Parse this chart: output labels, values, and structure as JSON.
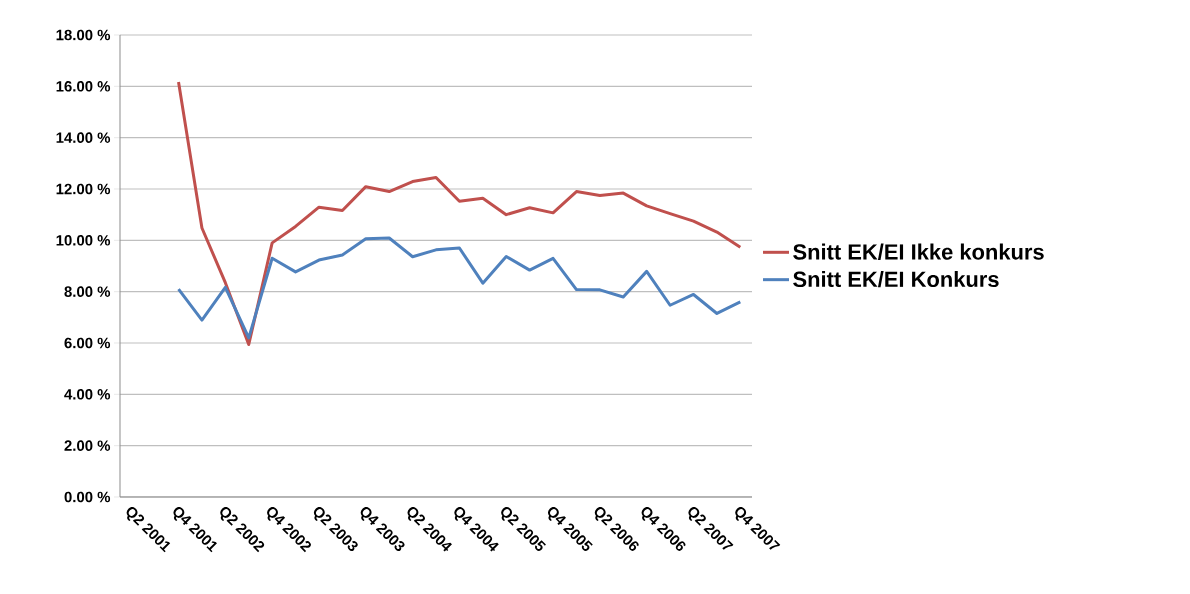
{
  "chart_data": {
    "type": "line",
    "categories": [
      "Q2 2001",
      null,
      "Q4 2001",
      null,
      "Q2 2002",
      null,
      "Q4 2002",
      null,
      "Q2 2003",
      null,
      "Q4 2003",
      null,
      "Q2 2004",
      null,
      "Q4 2004",
      null,
      "Q2 2005",
      null,
      "Q4 2005",
      null,
      "Q2 2006",
      null,
      "Q4 2006",
      null,
      "Q2 2007",
      null,
      "Q4 2007"
    ],
    "series": [
      {
        "name": "Snitt EK/EI Ikke konkurs",
        "color": "#c0504d",
        "values": [
          null,
          null,
          16.17,
          10.48,
          8.35,
          5.94,
          9.9,
          10.54,
          11.29,
          11.16,
          12.09,
          11.9,
          12.29,
          12.45,
          11.52,
          11.64,
          11.0,
          11.27,
          11.07,
          11.9,
          11.75,
          11.84,
          11.34,
          11.04,
          10.75,
          10.32,
          9.73
        ]
      },
      {
        "name": "Snitt EK/EI Konkurs",
        "color": "#4f81bd",
        "values": [
          null,
          null,
          8.1,
          6.89,
          8.17,
          6.2,
          9.3,
          8.77,
          9.23,
          9.43,
          10.06,
          10.09,
          9.36,
          9.63,
          9.7,
          8.33,
          9.37,
          8.84,
          9.3,
          8.08,
          8.07,
          7.79,
          8.79,
          7.47,
          7.89,
          7.15,
          7.6
        ]
      }
    ],
    "ylim": [
      0,
      18
    ],
    "yticks": [
      {
        "value": 0,
        "label": "0.00 %"
      },
      {
        "value": 2,
        "label": "2.00 %"
      },
      {
        "value": 4,
        "label": "4.00 %"
      },
      {
        "value": 6,
        "label": "6.00 %"
      },
      {
        "value": 8,
        "label": "8.00 %"
      },
      {
        "value": 10,
        "label": "10.00 %"
      },
      {
        "value": 12,
        "label": "12.00 %"
      },
      {
        "value": 14,
        "label": "14.00 %"
      },
      {
        "value": 16,
        "label": "16.00 %"
      },
      {
        "value": 18,
        "label": "18.00 %"
      }
    ],
    "grid": "y",
    "legend": "right",
    "line_style": "solid"
  }
}
